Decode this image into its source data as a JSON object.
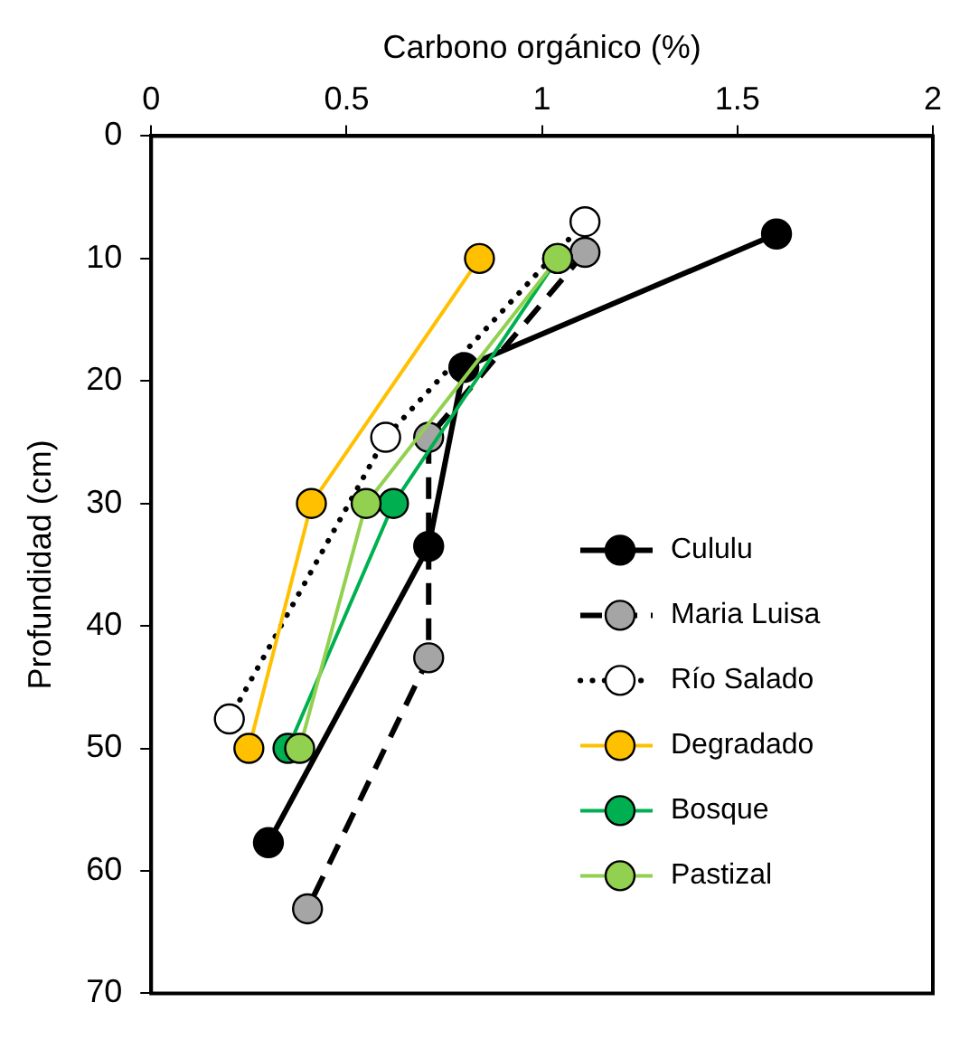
{
  "chart_data": {
    "type": "line",
    "xlabel": "Carbono orgánico (%)",
    "ylabel": "Profundidad (cm)",
    "xlim": [
      0,
      2
    ],
    "xticks": [
      0,
      0.5,
      1,
      1.5,
      2
    ],
    "ylim": [
      70,
      0
    ],
    "yticks": [
      0,
      10,
      20,
      30,
      40,
      50,
      60,
      70
    ],
    "grid": false,
    "legend": "bottom right",
    "marker": "circle",
    "series": [
      {
        "name": "Cululu",
        "color": "#000000",
        "colors": [
          "#000000",
          "#000000",
          "#000000",
          "#000000"
        ],
        "line_style": "solid",
        "x": [
          1.6,
          0.8,
          0.71,
          0.3
        ],
        "values": [
          8,
          18.9,
          33.5,
          57.7
        ]
      },
      {
        "name": "Maria Luisa",
        "color": "#000000",
        "colors": [
          "#a5a5a5",
          "#a5a5a5",
          "#a5a5a5",
          "#a5a5a5"
        ],
        "line_style": "dashed",
        "x": [
          1.11,
          0.71,
          0.71,
          0.4
        ],
        "values": [
          9.5,
          24.6,
          42.6,
          63.1
        ]
      },
      {
        "name": "Río Salado",
        "color": "#000000",
        "colors": [
          "#ffffff",
          "#ffffff",
          "#ffffff"
        ],
        "line_style": "dotted",
        "x": [
          1.11,
          0.6,
          0.2
        ],
        "values": [
          7,
          24.6,
          47.6
        ]
      },
      {
        "name": "Degradado",
        "color": "#ffc000",
        "colors": [
          "#ffc000",
          "#ffc000",
          "#ffc000"
        ],
        "line_style": "solid",
        "x": [
          0.84,
          0.41,
          0.25
        ],
        "values": [
          10,
          30,
          50
        ]
      },
      {
        "name": "Bosque",
        "color": "#00b050",
        "colors": [
          "#00b050",
          "#00b050",
          "#00b050"
        ],
        "line_style": "solid",
        "x": [
          1.04,
          0.62,
          0.35
        ],
        "values": [
          10,
          30,
          50
        ]
      },
      {
        "name": "Pastizal",
        "color": "#92d050",
        "colors": [
          "#92d050",
          "#92d050",
          "#92d050"
        ],
        "line_style": "solid",
        "x": [
          1.04,
          0.55,
          0.38
        ],
        "values": [
          10,
          30,
          50
        ]
      }
    ]
  }
}
